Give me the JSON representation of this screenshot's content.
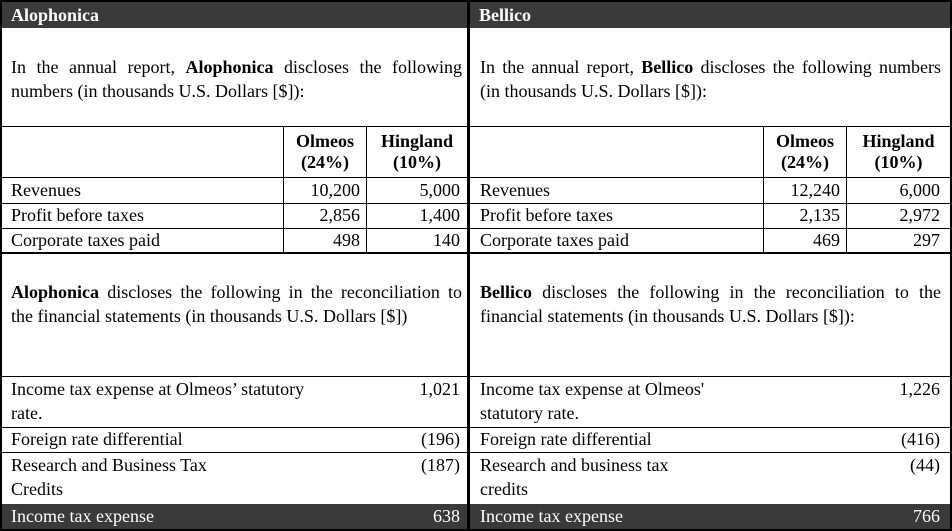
{
  "left": {
    "company": "Alophonica",
    "intro_prefix": "In the annual report,",
    "intro_suffix": "discloses the following numbers (in thousands U.S. Dollars [$]):",
    "col1_name": "Olmeos",
    "col1_rate": "(24%)",
    "col2_name": "Hingland",
    "col2_rate": "(10%)",
    "rows": [
      {
        "label": "Revenues",
        "v1": "10,200",
        "v2": "5,000"
      },
      {
        "label": "Profit before taxes",
        "v1": "2,856",
        "v2": "1,400"
      },
      {
        "label": "Corporate taxes paid",
        "v1": "498",
        "v2": "140"
      }
    ],
    "recon_suffix": "discloses the following in the reconciliation to the financial statements (in thousands U.S. Dollars [$])",
    "recon_rows": [
      {
        "label": "Income tax expense at Olmeos’ statutory rate.",
        "value": "1,021"
      },
      {
        "label": "Foreign rate differential",
        "value": "(196)"
      },
      {
        "label": "Research and Business Tax Credits",
        "value": "(187)"
      }
    ],
    "total_label": "Income tax expense",
    "total_value": "638"
  },
  "right": {
    "company": "Bellico",
    "intro_prefix": "In the annual report,",
    "intro_suffix": "discloses the following numbers (in thousands U.S. Dollars [$]):",
    "col1_name": "Olmeos",
    "col1_rate": "(24%)",
    "col2_name": "Hingland",
    "col2_rate": "(10%)",
    "rows": [
      {
        "label": "Revenues",
        "v1": "12,240",
        "v2": "6,000"
      },
      {
        "label": "Profit before taxes",
        "v1": "2,135",
        "v2": "2,972"
      },
      {
        "label": "Corporate taxes paid",
        "v1": "469",
        "v2": "297"
      }
    ],
    "recon_suffix": "discloses the following in the reconciliation to the financial statements (in thousands U.S. Dollars [$]):",
    "recon_rows": [
      {
        "label": "Income tax expense at Olmeos' statutory rate.",
        "value": "1,226"
      },
      {
        "label": "Foreign rate differential",
        "value": "(416)"
      },
      {
        "label": "Research and business tax credits",
        "value": "(44)"
      }
    ],
    "total_label": "Income tax expense",
    "total_value": "766"
  },
  "colors": {
    "header_bg": "#3a3a3a",
    "header_text": "#ffffff",
    "border": "#000000"
  }
}
